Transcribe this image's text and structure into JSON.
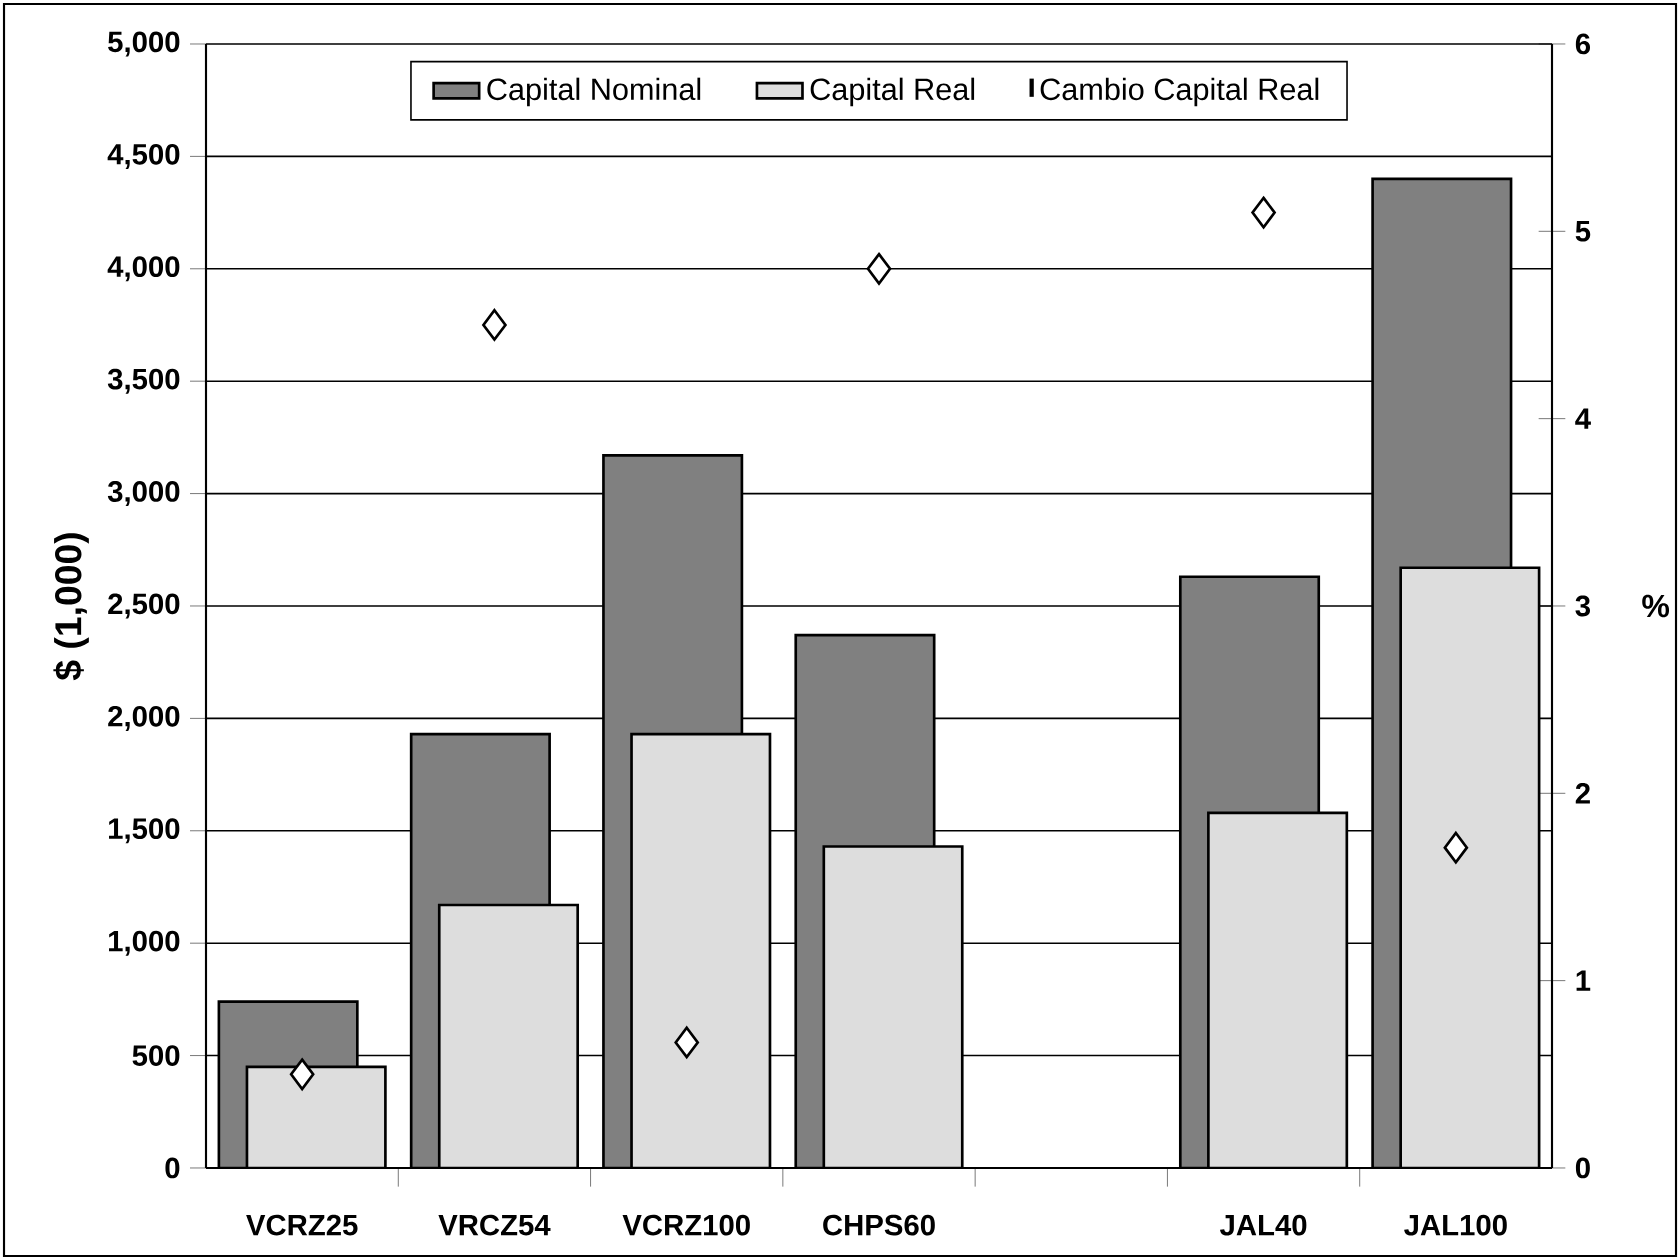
{
  "chart_data": {
    "type": "bar",
    "ylabel": "$ (1,000)",
    "y2label": "%",
    "categories": [
      "VCRZ25",
      "VRCZ54",
      "VCRZ100",
      "CHPS60",
      null,
      "JAL40",
      "JAL100"
    ],
    "series": [
      {
        "name": "Capital Nominal",
        "color": "#808080",
        "values": [
          740,
          1930,
          3170,
          2370,
          null,
          2630,
          4400
        ]
      },
      {
        "name": "Capital Real",
        "color": "#dddddd",
        "values": [
          450,
          1170,
          1930,
          1430,
          null,
          1580,
          2670
        ]
      },
      {
        "name": "Cambio Capital Real",
        "type": "scatter",
        "axis": "y2",
        "marker": "diamond",
        "color": "#000000",
        "values": [
          0.5,
          4.5,
          0.67,
          4.8,
          null,
          5.1,
          1.71
        ]
      }
    ],
    "ylim": [
      0,
      5000
    ],
    "yticks": [
      0,
      500,
      {
        "value": 1000,
        "label": "1,000"
      },
      {
        "value": 1500,
        "label": "1,500"
      },
      {
        "value": 2000,
        "label": "2,000"
      },
      {
        "value": 2500,
        "label": "2,500"
      },
      {
        "value": 3000,
        "label": "3,000"
      },
      {
        "value": 3500,
        "label": "3,500"
      },
      {
        "value": 4000,
        "label": "4,000"
      },
      {
        "value": 4500,
        "label": "4,500"
      },
      {
        "value": 5000,
        "label": "5,000"
      }
    ],
    "y2lim": [
      0,
      6
    ],
    "y2ticks": [
      0,
      1,
      2,
      3,
      4,
      5,
      6
    ],
    "grid": "y",
    "legend": "top"
  }
}
